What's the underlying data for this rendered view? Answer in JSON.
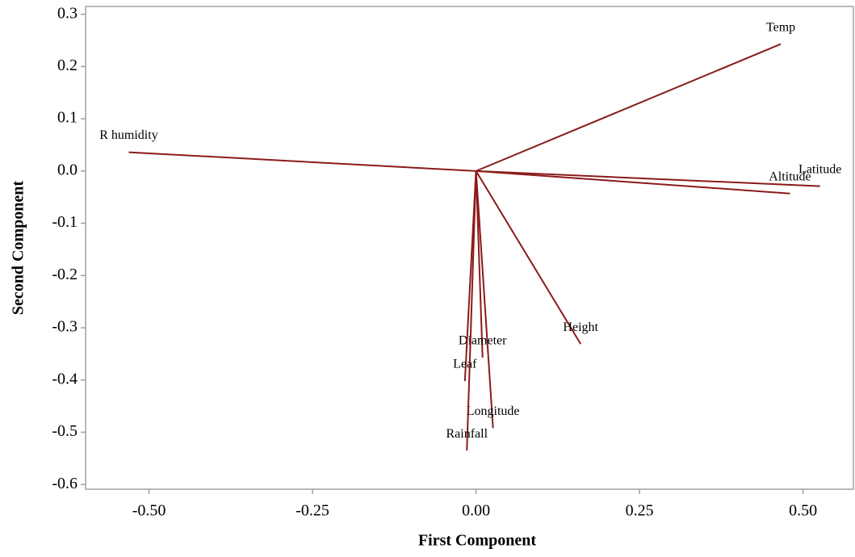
{
  "chart_data": {
    "type": "vector",
    "x_label": "First Component",
    "y_label": "Second Component",
    "color": "#8b1a1a",
    "labels": [
      "Temp",
      "R humidity",
      "Latitude",
      "Altitude",
      "Height",
      "Diameter",
      "Leaf",
      "Longitude",
      "Rainfall"
    ],
    "x": [
      0.466,
      -0.531,
      0.526,
      0.48,
      0.16,
      0.01,
      -0.017,
      0.026,
      -0.014
    ],
    "y": [
      0.243,
      0.036,
      -0.029,
      -0.043,
      -0.331,
      -0.357,
      -0.402,
      -0.492,
      -0.535
    ],
    "xlim": [
      -0.597,
      0.577
    ],
    "ylim": [
      -0.609,
      0.315
    ],
    "xticks": [
      {
        "value": -0.5,
        "label": "-0.50"
      },
      {
        "value": -0.25,
        "label": "-0.25"
      },
      {
        "value": 0,
        "label": "0.00"
      },
      {
        "value": 0.25,
        "label": "0.25"
      },
      {
        "value": 0.5,
        "label": "0.50"
      }
    ],
    "yticks": [
      0.3,
      0.2,
      0.1,
      {
        "value": 0,
        "label": "0.0"
      },
      -0.1,
      -0.2,
      -0.3,
      -0.4,
      -0.5,
      -0.6
    ]
  }
}
